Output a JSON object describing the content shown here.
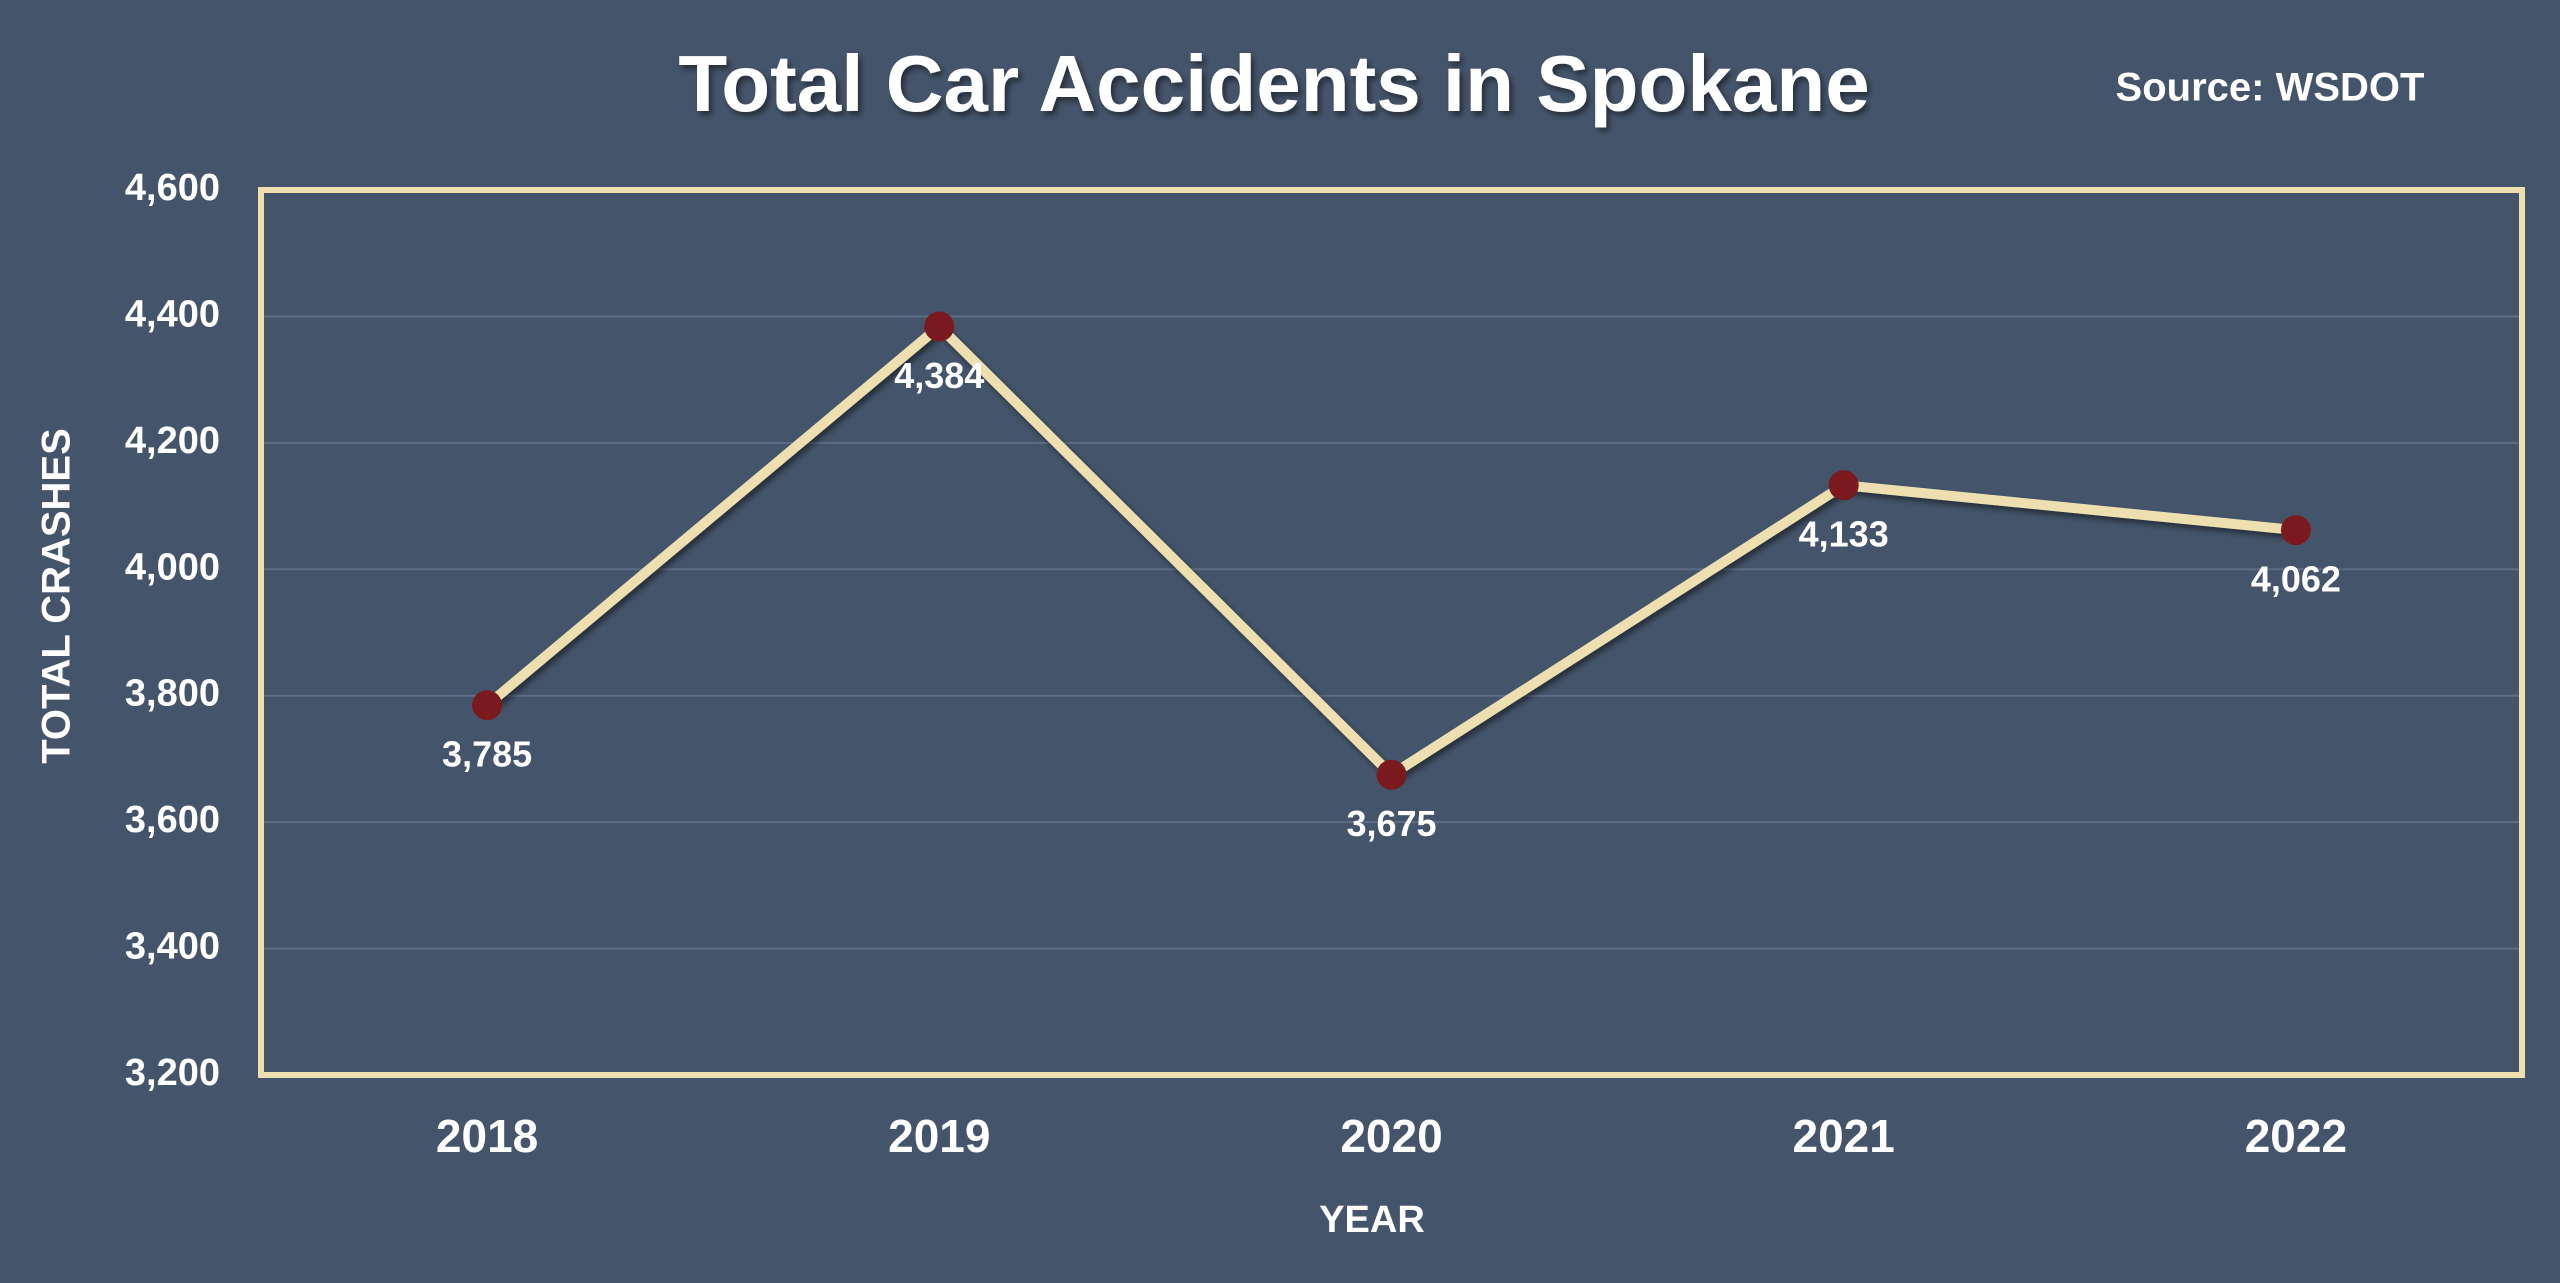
{
  "chart_data": {
    "type": "line",
    "title": "Total Car Accidents in Spokane",
    "source": "Source: WSDOT",
    "x_label": "YEAR",
    "y_label": "TOTAL CRASHES",
    "categories": [
      "2018",
      "2019",
      "2020",
      "2021",
      "2022"
    ],
    "values": [
      3785,
      4384,
      3675,
      4133,
      4062
    ],
    "value_labels": [
      "3,785",
      "4,384",
      "3,675",
      "4,133",
      "4,062"
    ],
    "line_color": "#eedfb0",
    "marker_color": "#7b1a1e",
    "ylim": [
      3200,
      4600
    ],
    "yticks": [
      {
        "value": 3200,
        "label": "3,200"
      },
      {
        "value": 3400,
        "label": "3,400"
      },
      {
        "value": 3600,
        "label": "3,600"
      },
      {
        "value": 3800,
        "label": "3,800"
      },
      {
        "value": 4000,
        "label": "4,000"
      },
      {
        "value": 4200,
        "label": "4,200"
      },
      {
        "value": 4400,
        "label": "4,400"
      },
      {
        "value": 4600,
        "label": "4,600"
      }
    ],
    "grid": true
  }
}
